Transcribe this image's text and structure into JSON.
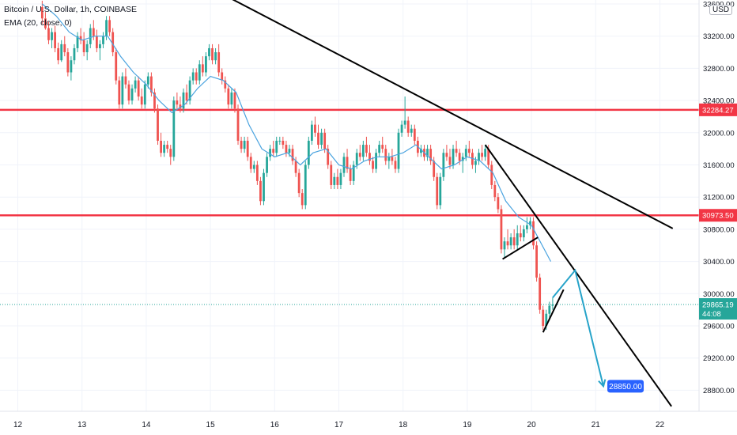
{
  "chart_data": {
    "type": "candlestick",
    "symbol_line": "Bitcoin / U.S. Dollar, 1h, COINBASE",
    "indicator_line": "EMA (20, close, 0)",
    "currency_badge": "USD",
    "y_axis": {
      "ticks": [
        "33600.00",
        "33200.00",
        "32800.00",
        "32400.00",
        "32000.00",
        "31600.00",
        "31200.00",
        "30800.00",
        "30400.00",
        "30000.00",
        "29600.00",
        "29200.00",
        "28800.00"
      ],
      "range": [
        28400,
        33800
      ]
    },
    "x_axis": {
      "ticks": [
        "12",
        "13",
        "14",
        "15",
        "16",
        "17",
        "18",
        "19",
        "20",
        "21",
        "22"
      ]
    },
    "horizontal_levels": [
      {
        "price": 32284.27,
        "label": "32284.27",
        "color": "#f23645"
      },
      {
        "price": 30973.5,
        "label": "30973.50",
        "color": "#f23645"
      }
    ],
    "last_price": {
      "value": 29865.19,
      "label": "29865.19",
      "countdown": "44:08",
      "color": "#26a69a"
    },
    "projection": {
      "target_label": "28850.00",
      "target_price": 28850.0,
      "color": "#2962ff",
      "arrow_color": "#26a3c9"
    },
    "ema_color": "#4aa3df",
    "up_color": "#26a69a",
    "down_color": "#ef5350",
    "trendline_color": "#000000",
    "candles": [
      [
        12.38,
        33560,
        33640,
        33350,
        33420
      ],
      [
        12.43,
        33420,
        33500,
        33280,
        33300
      ],
      [
        12.48,
        33300,
        33380,
        33100,
        33150
      ],
      [
        12.53,
        33150,
        33300,
        33050,
        33250
      ],
      [
        12.58,
        33250,
        33330,
        33000,
        33050
      ],
      [
        12.63,
        33050,
        33120,
        32850,
        32900
      ],
      [
        12.68,
        32900,
        33150,
        32880,
        33100
      ],
      [
        12.73,
        33100,
        33200,
        32950,
        33000
      ],
      [
        12.78,
        33000,
        33050,
        32700,
        32750
      ],
      [
        12.83,
        32750,
        32950,
        32650,
        32900
      ],
      [
        12.88,
        32900,
        33100,
        32850,
        33050
      ],
      [
        12.93,
        33050,
        33250,
        33000,
        33200
      ],
      [
        12.98,
        33200,
        33300,
        33100,
        33150
      ],
      [
        13.03,
        33150,
        33250,
        32950,
        33000
      ],
      [
        13.08,
        33000,
        33150,
        32900,
        33100
      ],
      [
        13.13,
        33100,
        33350,
        33050,
        33300
      ],
      [
        13.18,
        33300,
        33400,
        33150,
        33200
      ],
      [
        13.23,
        33200,
        33280,
        33000,
        33050
      ],
      [
        13.28,
        33050,
        33150,
        32900,
        33100
      ],
      [
        13.33,
        33100,
        33250,
        33050,
        33200
      ],
      [
        13.38,
        33200,
        33450,
        33150,
        33400
      ],
      [
        13.43,
        33400,
        33450,
        33200,
        33250
      ],
      [
        13.48,
        33250,
        33300,
        32950,
        33000
      ],
      [
        13.53,
        33000,
        33050,
        32600,
        32650
      ],
      [
        13.58,
        32650,
        32700,
        32300,
        32350
      ],
      [
        13.63,
        32350,
        32750,
        32300,
        32700
      ],
      [
        13.68,
        32700,
        32800,
        32550,
        32600
      ],
      [
        13.73,
        32600,
        32650,
        32350,
        32400
      ],
      [
        13.78,
        32400,
        32600,
        32350,
        32550
      ],
      [
        13.83,
        32550,
        32700,
        32500,
        32650
      ],
      [
        13.88,
        32650,
        32700,
        32400,
        32450
      ],
      [
        13.93,
        32450,
        32550,
        32300,
        32350
      ],
      [
        13.98,
        32350,
        32650,
        32300,
        32600
      ],
      [
        14.03,
        32600,
        32750,
        32550,
        32700
      ],
      [
        14.08,
        32700,
        32750,
        32450,
        32500
      ],
      [
        14.13,
        32500,
        32550,
        32250,
        32300
      ],
      [
        14.18,
        32300,
        32350,
        31850,
        31900
      ],
      [
        14.23,
        31900,
        32000,
        31700,
        31750
      ],
      [
        14.28,
        31750,
        31900,
        31700,
        31850
      ],
      [
        14.33,
        31850,
        31900,
        31750,
        31800
      ],
      [
        14.38,
        31800,
        31850,
        31600,
        31700
      ],
      [
        14.43,
        31700,
        32450,
        31650,
        32400
      ],
      [
        14.48,
        32400,
        32500,
        32300,
        32350
      ],
      [
        14.53,
        32350,
        32450,
        32250,
        32300
      ],
      [
        14.58,
        32300,
        32550,
        32250,
        32500
      ],
      [
        14.63,
        32500,
        32600,
        32350,
        32400
      ],
      [
        14.68,
        32400,
        32700,
        32350,
        32650
      ],
      [
        14.73,
        32650,
        32800,
        32600,
        32750
      ],
      [
        14.78,
        32750,
        32800,
        32600,
        32650
      ],
      [
        14.83,
        32650,
        32900,
        32600,
        32850
      ],
      [
        14.88,
        32850,
        32950,
        32700,
        32750
      ],
      [
        14.93,
        32750,
        33000,
        32700,
        32950
      ],
      [
        14.98,
        32950,
        33100,
        32900,
        33050
      ],
      [
        15.03,
        33050,
        33100,
        32850,
        32900
      ],
      [
        15.08,
        32900,
        33050,
        32850,
        33000
      ],
      [
        15.13,
        33000,
        33100,
        32700,
        32750
      ],
      [
        15.18,
        32750,
        32800,
        32600,
        32650
      ],
      [
        15.23,
        32650,
        32700,
        32500,
        32550
      ],
      [
        15.28,
        32550,
        32600,
        32300,
        32350
      ],
      [
        15.33,
        32350,
        32550,
        32300,
        32500
      ],
      [
        15.38,
        32500,
        32550,
        32250,
        32300
      ],
      [
        15.43,
        32300,
        32350,
        31850,
        31900
      ],
      [
        15.48,
        31900,
        31950,
        31750,
        31800
      ],
      [
        15.53,
        31800,
        31950,
        31750,
        31900
      ],
      [
        15.58,
        31900,
        31950,
        31650,
        31700
      ],
      [
        15.63,
        31700,
        31750,
        31500,
        31550
      ],
      [
        15.68,
        31550,
        31650,
        31500,
        31600
      ],
      [
        15.73,
        31600,
        31650,
        31350,
        31400
      ],
      [
        15.78,
        31400,
        31450,
        31100,
        31150
      ],
      [
        15.83,
        31150,
        31550,
        31100,
        31500
      ],
      [
        15.88,
        31500,
        31750,
        31450,
        31700
      ],
      [
        15.93,
        31700,
        31850,
        31650,
        31800
      ],
      [
        15.98,
        31800,
        31900,
        31700,
        31750
      ],
      [
        16.03,
        31750,
        31950,
        31700,
        31900
      ],
      [
        16.08,
        31900,
        31950,
        31850,
        31900
      ],
      [
        16.13,
        31900,
        31950,
        31800,
        31850
      ],
      [
        16.18,
        31850,
        31900,
        31700,
        31750
      ],
      [
        16.23,
        31750,
        31850,
        31700,
        31800
      ],
      [
        16.28,
        31800,
        31850,
        31600,
        31650
      ],
      [
        16.33,
        31650,
        31700,
        31450,
        31500
      ],
      [
        16.38,
        31500,
        31550,
        31200,
        31250
      ],
      [
        16.43,
        31250,
        31300,
        31050,
        31100
      ],
      [
        16.48,
        31100,
        31650,
        31050,
        31600
      ],
      [
        16.53,
        31600,
        31950,
        31550,
        31900
      ],
      [
        16.58,
        31900,
        32150,
        31850,
        32100
      ],
      [
        16.63,
        32100,
        32200,
        31950,
        32000
      ],
      [
        16.68,
        32000,
        32100,
        31800,
        31850
      ],
      [
        16.73,
        31850,
        32050,
        31800,
        32000
      ],
      [
        16.78,
        32000,
        32050,
        31750,
        31800
      ],
      [
        16.83,
        31800,
        31850,
        31550,
        31600
      ],
      [
        16.88,
        31600,
        31650,
        31300,
        31350
      ],
      [
        16.93,
        31350,
        31500,
        31300,
        31450
      ],
      [
        16.98,
        31450,
        31550,
        31300,
        31350
      ],
      [
        17.03,
        31350,
        31550,
        31300,
        31500
      ],
      [
        17.08,
        31500,
        31750,
        31450,
        31700
      ],
      [
        17.13,
        31700,
        31800,
        31500,
        31550
      ],
      [
        17.18,
        31550,
        31600,
        31350,
        31400
      ],
      [
        17.23,
        31400,
        31650,
        31350,
        31600
      ],
      [
        17.28,
        31600,
        31800,
        31550,
        31750
      ],
      [
        17.33,
        31750,
        31850,
        31650,
        31700
      ],
      [
        17.38,
        31700,
        31900,
        31650,
        31850
      ],
      [
        17.43,
        31850,
        31950,
        31700,
        31750
      ],
      [
        17.48,
        31750,
        31850,
        31600,
        31650
      ],
      [
        17.53,
        31650,
        31700,
        31500,
        31550
      ],
      [
        17.58,
        31550,
        31800,
        31500,
        31750
      ],
      [
        17.63,
        31750,
        31900,
        31700,
        31850
      ],
      [
        17.68,
        31850,
        31950,
        31750,
        31800
      ],
      [
        17.73,
        31800,
        31850,
        31600,
        31650
      ],
      [
        17.78,
        31650,
        31750,
        31550,
        31700
      ],
      [
        17.83,
        31700,
        31800,
        31600,
        31650
      ],
      [
        17.88,
        31650,
        31700,
        31500,
        31550
      ],
      [
        17.93,
        31550,
        32050,
        31500,
        32000
      ],
      [
        17.98,
        32000,
        32150,
        31950,
        32100
      ],
      [
        18.03,
        32100,
        32450,
        32050,
        32150
      ],
      [
        18.08,
        32150,
        32200,
        31950,
        32000
      ],
      [
        18.13,
        32000,
        32100,
        31950,
        32050
      ],
      [
        18.18,
        32050,
        32100,
        31850,
        31900
      ],
      [
        18.23,
        31900,
        31950,
        31700,
        31750
      ],
      [
        18.28,
        31750,
        31850,
        31700,
        31800
      ],
      [
        18.33,
        31800,
        31850,
        31650,
        31700
      ],
      [
        18.38,
        31700,
        31850,
        31650,
        31800
      ],
      [
        18.43,
        31800,
        31850,
        31600,
        31650
      ],
      [
        18.48,
        31650,
        31700,
        31400,
        31450
      ],
      [
        18.53,
        31450,
        31500,
        31050,
        31100
      ],
      [
        18.58,
        31100,
        31500,
        31050,
        31450
      ],
      [
        18.63,
        31450,
        31800,
        31400,
        31750
      ],
      [
        18.68,
        31750,
        31850,
        31650,
        31700
      ],
      [
        18.73,
        31700,
        31800,
        31550,
        31600
      ],
      [
        18.78,
        31600,
        31850,
        31550,
        31800
      ],
      [
        18.83,
        31800,
        31900,
        31700,
        31750
      ],
      [
        18.88,
        31750,
        31800,
        31600,
        31650
      ],
      [
        18.93,
        31650,
        31750,
        31500,
        31700
      ],
      [
        18.98,
        31700,
        31850,
        31650,
        31800
      ],
      [
        19.03,
        31800,
        31900,
        31700,
        31750
      ],
      [
        19.08,
        31750,
        31800,
        31550,
        31600
      ],
      [
        19.13,
        31600,
        31700,
        31500,
        31650
      ],
      [
        19.18,
        31650,
        31800,
        31600,
        31750
      ],
      [
        19.23,
        31750,
        31850,
        31650,
        31700
      ],
      [
        19.28,
        31700,
        31850,
        31650,
        31800
      ],
      [
        19.33,
        31800,
        31850,
        31550,
        31600
      ],
      [
        19.38,
        31600,
        31650,
        31300,
        31350
      ],
      [
        19.43,
        31350,
        31400,
        31150,
        31200
      ],
      [
        19.48,
        31200,
        31250,
        31000,
        31050
      ],
      [
        19.53,
        31050,
        31100,
        30500,
        30550
      ],
      [
        19.58,
        30550,
        30700,
        30450,
        30650
      ],
      [
        19.63,
        30650,
        30800,
        30550,
        30600
      ],
      [
        19.68,
        30600,
        30750,
        30550,
        30700
      ],
      [
        19.73,
        30700,
        30800,
        30550,
        30600
      ],
      [
        19.78,
        30600,
        30850,
        30550,
        30750
      ],
      [
        19.83,
        30750,
        30850,
        30650,
        30700
      ],
      [
        19.88,
        30700,
        30850,
        30650,
        30800
      ],
      [
        19.93,
        30800,
        30950,
        30750,
        30850
      ],
      [
        19.98,
        30850,
        30950,
        30800,
        30900
      ],
      [
        20.03,
        30900,
        30950,
        30550,
        30600
      ],
      [
        20.08,
        30600,
        30650,
        30150,
        30200
      ],
      [
        20.13,
        30200,
        30250,
        29750,
        29800
      ],
      [
        20.18,
        29800,
        29850,
        29550,
        29600
      ],
      [
        20.23,
        29600,
        29800,
        29550,
        29750
      ],
      [
        20.28,
        29750,
        29900,
        29700,
        29850
      ],
      [
        20.33,
        29850,
        29950,
        29800,
        29865.19
      ]
    ],
    "ema_points": [
      [
        12.38,
        33600
      ],
      [
        12.6,
        33450
      ],
      [
        12.8,
        33250
      ],
      [
        13.0,
        33150
      ],
      [
        13.2,
        33200
      ],
      [
        13.4,
        33200
      ],
      [
        13.6,
        32950
      ],
      [
        13.8,
        32750
      ],
      [
        14.0,
        32600
      ],
      [
        14.2,
        32400
      ],
      [
        14.4,
        32250
      ],
      [
        14.6,
        32350
      ],
      [
        14.8,
        32550
      ],
      [
        15.0,
        32700
      ],
      [
        15.2,
        32650
      ],
      [
        15.4,
        32500
      ],
      [
        15.6,
        32100
      ],
      [
        15.8,
        31800
      ],
      [
        16.0,
        31700
      ],
      [
        16.2,
        31750
      ],
      [
        16.4,
        31600
      ],
      [
        16.6,
        31750
      ],
      [
        16.8,
        31800
      ],
      [
        17.0,
        31600
      ],
      [
        17.2,
        31550
      ],
      [
        17.4,
        31650
      ],
      [
        17.6,
        31700
      ],
      [
        17.8,
        31700
      ],
      [
        18.0,
        31750
      ],
      [
        18.2,
        31850
      ],
      [
        18.4,
        31700
      ],
      [
        18.6,
        31550
      ],
      [
        18.8,
        31600
      ],
      [
        19.0,
        31700
      ],
      [
        19.2,
        31650
      ],
      [
        19.4,
        31500
      ],
      [
        19.6,
        31150
      ],
      [
        19.8,
        30950
      ],
      [
        20.0,
        30850
      ],
      [
        20.3,
        30400
      ]
    ],
    "trendlines": [
      [
        [
          15.0,
          33800
        ],
        [
          22.2,
          30810
        ]
      ],
      [
        [
          19.28,
          31850
        ],
        [
          22.18,
          28600
        ]
      ],
      [
        [
          19.55,
          30430
        ],
        [
          20.1,
          30700
        ]
      ],
      [
        [
          20.18,
          29520
        ],
        [
          20.5,
          30050
        ]
      ]
    ],
    "projection_path": [
      [
        20.33,
        29950
      ],
      [
        20.68,
        30290
      ],
      [
        21.12,
        28850
      ]
    ]
  }
}
